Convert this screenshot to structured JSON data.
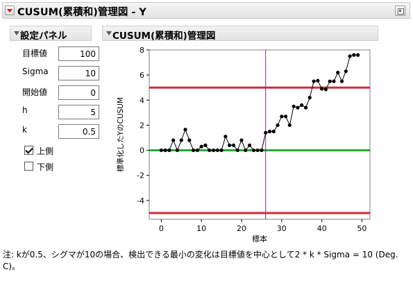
{
  "window": {
    "title": "CUSUM(累積和)管理図 - Y"
  },
  "settings_panel": {
    "header": "設定パネル",
    "params": [
      {
        "label": "目標値",
        "value": "100"
      },
      {
        "label": "Sigma",
        "value": "10"
      },
      {
        "label": "開始値",
        "value": "0"
      },
      {
        "label": "h",
        "value": "5"
      },
      {
        "label": "k",
        "value": "0.5"
      }
    ],
    "upper_label": "上側",
    "upper_checked": true,
    "lower_label": "下側",
    "lower_checked": false
  },
  "chart_panel": {
    "header": "CUSUM(累積和)管理図"
  },
  "chart_data": {
    "type": "line",
    "xlabel": "標本",
    "ylabel": "標準化したYのCUSUM",
    "xlim": [
      -3,
      52
    ],
    "ylim": [
      -5.5,
      8
    ],
    "x_ticks": [
      0,
      10,
      20,
      30,
      40,
      50
    ],
    "y_ticks": [
      -4,
      -2,
      0,
      2,
      4,
      6,
      8
    ],
    "x": [
      0,
      1,
      2,
      3,
      4,
      5,
      6,
      7,
      8,
      9,
      10,
      11,
      12,
      13,
      14,
      15,
      16,
      17,
      18,
      19,
      20,
      21,
      22,
      23,
      24,
      25,
      26,
      27,
      28,
      29,
      30,
      31,
      32,
      33,
      34,
      35,
      36,
      37,
      38,
      39,
      40,
      41,
      42,
      43,
      44,
      45,
      46,
      47,
      48,
      49
    ],
    "values": [
      0,
      0,
      0,
      0.8,
      0,
      0.8,
      1.65,
      0.8,
      0,
      0,
      0.3,
      0.4,
      0,
      0,
      0,
      0,
      1.1,
      0.4,
      0.4,
      0,
      0.8,
      0,
      0.4,
      0,
      0,
      0,
      1.4,
      1.5,
      1.5,
      2.0,
      2.7,
      2.7,
      2.0,
      3.5,
      3.4,
      3.6,
      3.4,
      4.2,
      5.5,
      5.55,
      4.9,
      4.85,
      5.5,
      5.5,
      6.2,
      5.5,
      6.3,
      7.5,
      7.6,
      7.6
    ],
    "upper_limit": 5,
    "lower_limit": -5,
    "center": 0,
    "change_point_x": 26,
    "colors": {
      "limit": "#d42a3a",
      "center": "#22a82f",
      "change_line": "#7a2a8a",
      "series": "#000000"
    },
    "grid": false
  },
  "footnote": "注: kが0.5、シグマが10の場合、検出できる最小の変化は目標値を中心として2 * k * Sigma = 10 (Deg. C)。"
}
